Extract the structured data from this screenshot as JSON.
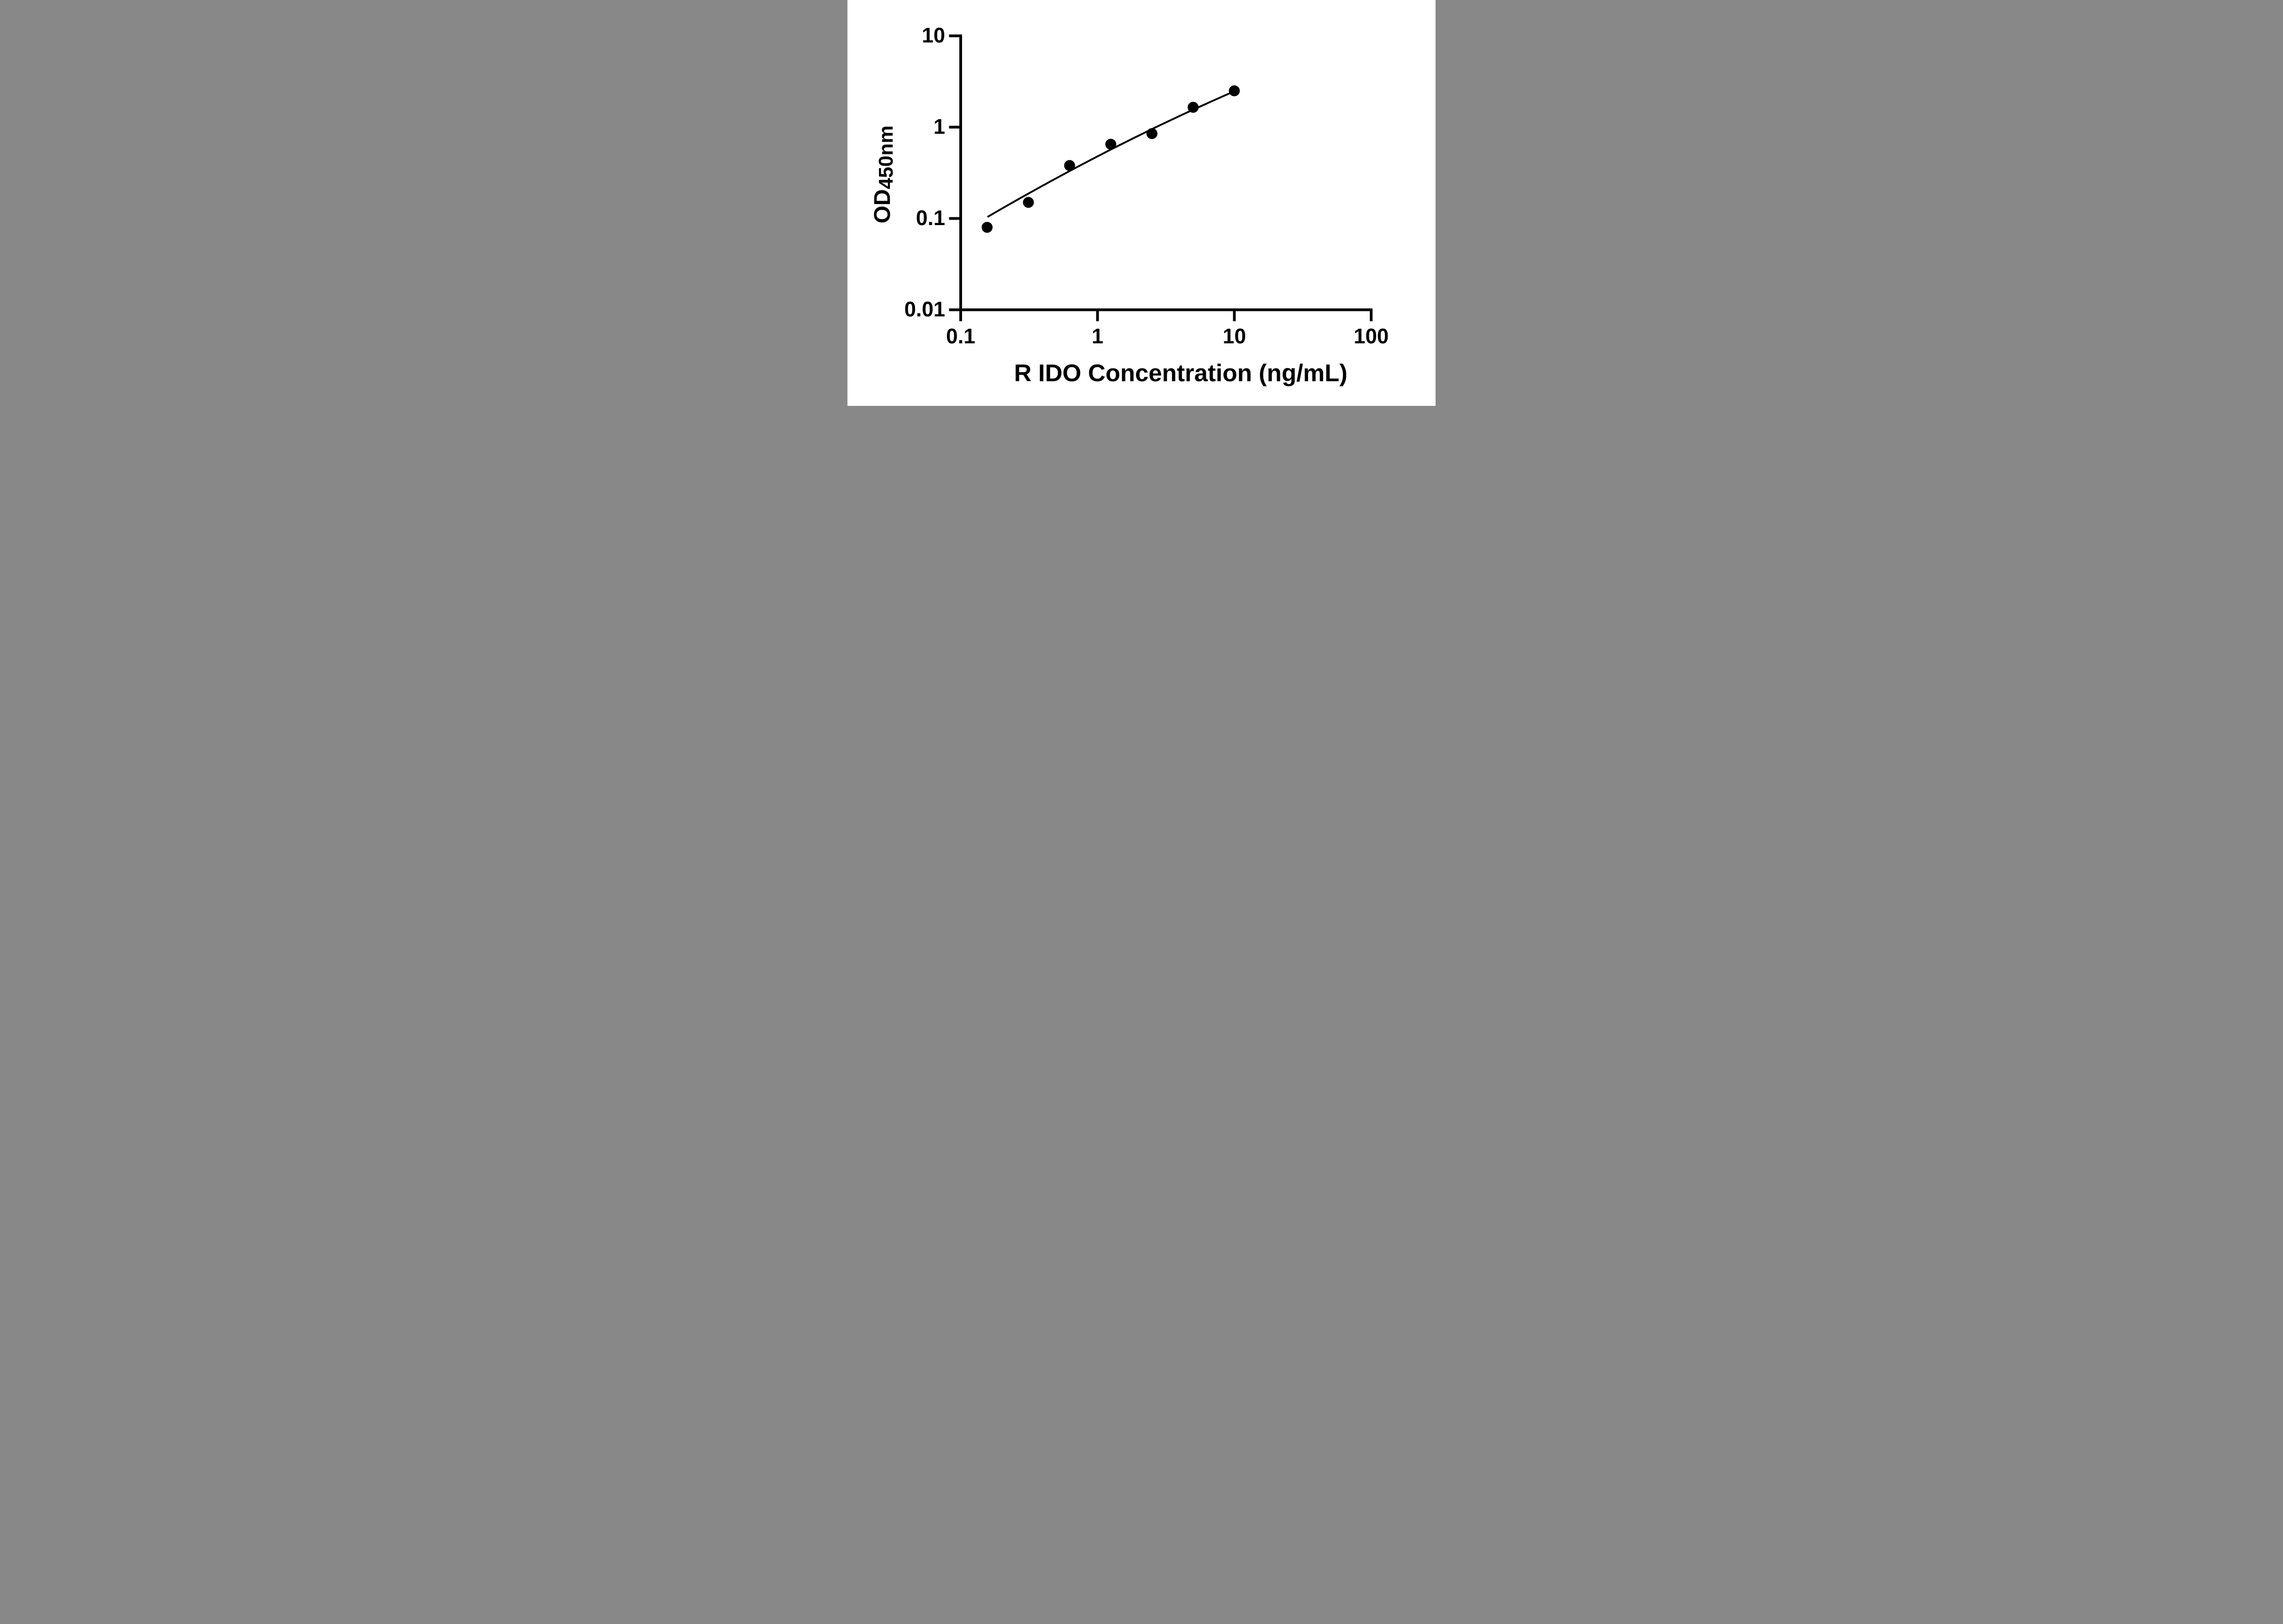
{
  "figure": {
    "background_color": "#ffffff",
    "ink_color": "#000000"
  },
  "x_axis": {
    "title": "R IDO Concentration (ng/mL)",
    "scale": "log",
    "range": [
      0.1,
      100
    ],
    "ticks": [
      {
        "value": 0.1,
        "label": "0.1"
      },
      {
        "value": 1,
        "label": "1"
      },
      {
        "value": 10,
        "label": "10"
      },
      {
        "value": 100,
        "label": "100"
      }
    ]
  },
  "y_axis": {
    "title_main": "OD",
    "title_sub": "450nm",
    "scale": "log",
    "range": [
      0.01,
      10
    ],
    "ticks": [
      {
        "value": 0.01,
        "label": "0.01"
      },
      {
        "value": 0.1,
        "label": "0.1"
      },
      {
        "value": 1,
        "label": "1"
      },
      {
        "value": 10,
        "label": "10"
      }
    ]
  },
  "chart_data": {
    "type": "scatter",
    "title": "",
    "xlabel": "R IDO Concentration (ng/mL)",
    "ylabel": "OD450nm",
    "xscale": "log",
    "yscale": "log",
    "xlim": [
      0.1,
      100
    ],
    "ylim": [
      0.01,
      10
    ],
    "grid": false,
    "legend": "none",
    "points": {
      "x": [
        0.156,
        0.3125,
        0.625,
        1.25,
        2.5,
        5,
        10
      ],
      "y": [
        0.08,
        0.15,
        0.38,
        0.65,
        0.85,
        1.65,
        2.5
      ]
    },
    "marker": {
      "shape": "circle",
      "color": "#000000",
      "radius_px": 12
    },
    "fit_curve": {
      "description": "smooth fitted standard curve in log-log space: log10(y) = a*u^2 + b*u + c, u = log10(x)",
      "coeffs": {
        "a": -0.0622,
        "b": 0.775,
        "c": -0.32
      },
      "x_range": [
        0.157,
        10.0
      ],
      "color": "#000000",
      "stroke_px": 4
    }
  }
}
